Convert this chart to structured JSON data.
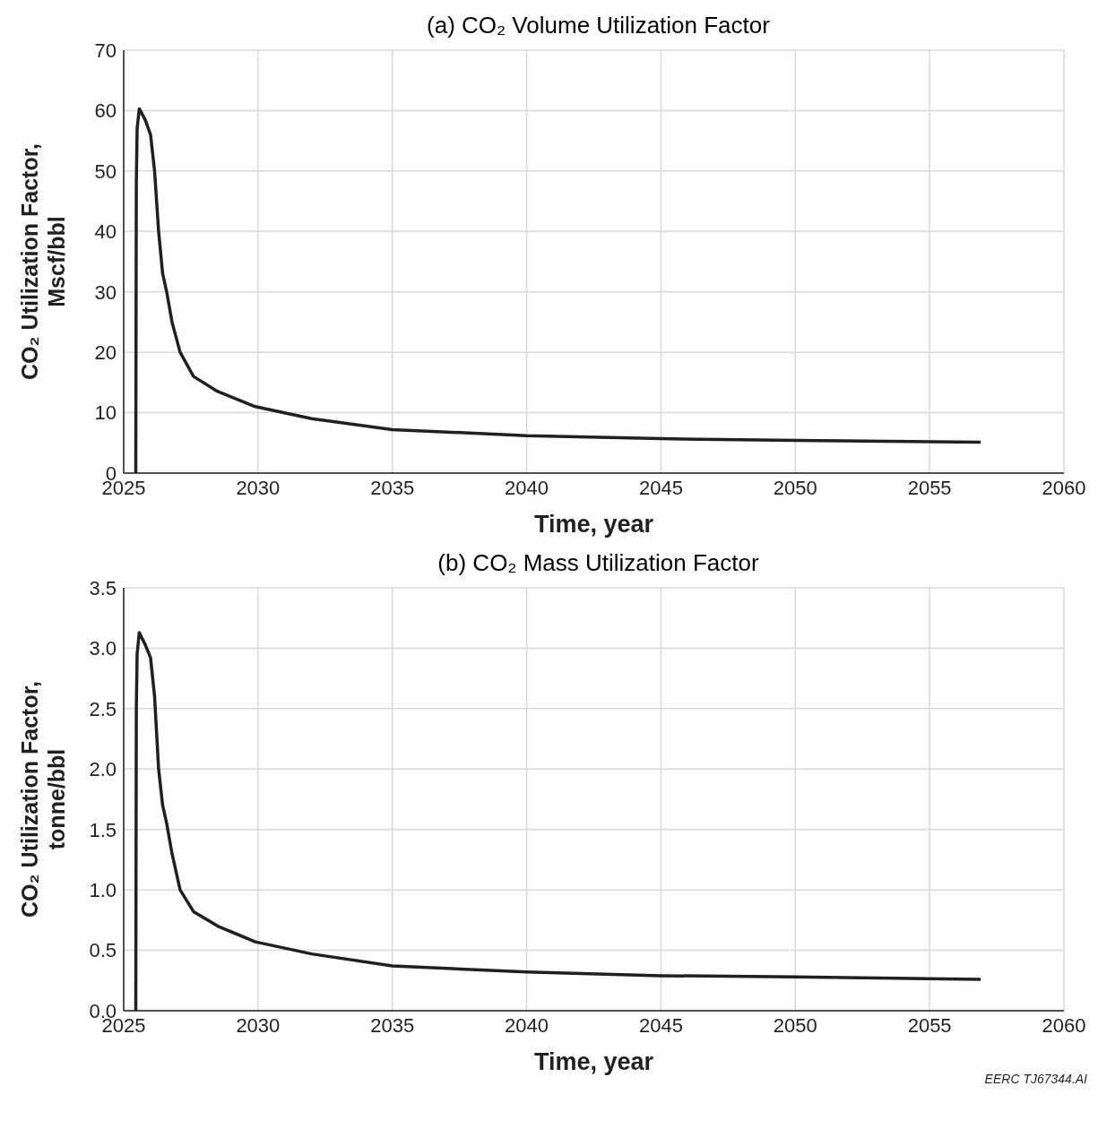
{
  "chart_data": [
    {
      "type": "line",
      "title": "(a) CO₂ Volume Utilization Factor",
      "xlabel": "Time, year",
      "ylabel": "CO₂ Utilization Factor, Mscf/bbl",
      "xlim": [
        2025,
        2060
      ],
      "xticks": [
        2025,
        2030,
        2035,
        2040,
        2045,
        2050,
        2055,
        2060
      ],
      "ylim": [
        0,
        70
      ],
      "yticks": [
        0,
        10,
        20,
        30,
        40,
        50,
        60,
        70
      ],
      "grid": true,
      "series": [
        {
          "color": "#231f20",
          "x": [
            2025.45,
            2025.47,
            2025.5,
            2025.58,
            2025.8,
            2026.0,
            2026.15,
            2026.3,
            2026.45,
            2026.6,
            2026.8,
            2027.1,
            2027.6,
            2028.5,
            2029.9,
            2032,
            2035,
            2040,
            2045,
            2050,
            2056.9
          ],
          "values": [
            0,
            48,
            57,
            60.3,
            58.5,
            56,
            50,
            40,
            33,
            30,
            25,
            20,
            16,
            13.5,
            11,
            9,
            7.2,
            6.2,
            5.7,
            5.4,
            5.1
          ]
        }
      ]
    },
    {
      "type": "line",
      "title": "(b) CO₂ Mass Utilization Factor",
      "xlabel": "Time, year",
      "ylabel": "CO₂ Utilization Factor, tonne/bbl",
      "xlim": [
        2025,
        2060
      ],
      "xticks": [
        2025,
        2030,
        2035,
        2040,
        2045,
        2050,
        2055,
        2060
      ],
      "ylim": [
        0,
        3.5
      ],
      "yticks": [
        {
          "value": 0,
          "label": "0.0"
        },
        {
          "value": 0.5,
          "label": "0.5"
        },
        {
          "value": 1,
          "label": "1.0"
        },
        {
          "value": 1.5,
          "label": "1.5"
        },
        {
          "value": 2,
          "label": "2.0"
        },
        {
          "value": 2.5,
          "label": "2.5"
        },
        {
          "value": 3,
          "label": "3.0"
        },
        {
          "value": 3.5,
          "label": "3.5"
        }
      ],
      "grid": true,
      "annotations": [
        "EERC TJ67344.AI"
      ],
      "series": [
        {
          "color": "#231f20",
          "x": [
            2025.45,
            2025.47,
            2025.5,
            2025.58,
            2025.8,
            2026.0,
            2026.15,
            2026.3,
            2026.45,
            2026.6,
            2026.8,
            2027.1,
            2027.6,
            2028.5,
            2029.9,
            2032,
            2035,
            2040,
            2045,
            2050,
            2056.9
          ],
          "values": [
            0,
            2.5,
            2.95,
            3.13,
            3.03,
            2.92,
            2.6,
            2.0,
            1.7,
            1.55,
            1.3,
            1.0,
            0.82,
            0.7,
            0.57,
            0.47,
            0.37,
            0.32,
            0.29,
            0.28,
            0.26
          ]
        }
      ]
    }
  ]
}
